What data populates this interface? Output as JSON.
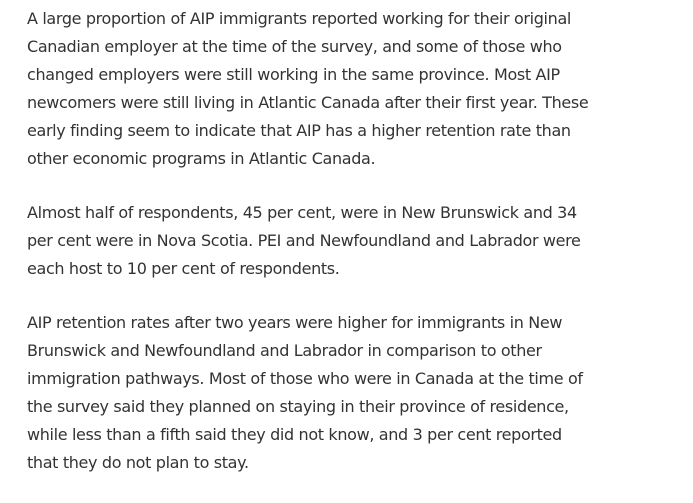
{
  "paragraphs": [
    {
      "lines": [
        "A large proportion of AIP immigrants reported working for their original",
        "Canadian employer at the time of the survey, and some of those who",
        "changed employers were still working in the same province. Most AIP",
        "newcomers were still living in Atlantic Canada after their first year. These",
        "early finding seem to indicate that AIP has a higher retention rate than",
        "other economic programs in Atlantic Canada."
      ]
    },
    {
      "lines": [
        "Almost half of respondents, 45 per cent, were in New Brunswick and 34",
        "per cent were in Nova Scotia. PEI and Newfoundland and Labrador were",
        "each host to 10 per cent of respondents."
      ]
    },
    {
      "lines": [
        "AIP retention rates after two years were higher for immigrants in New",
        "Brunswick and Newfoundland and Labrador in comparison to other",
        "immigration pathways. Most of those who were in Canada at the time of",
        "the survey said they planned on staying in their province of residence,",
        "while less than a fifth said they did not know, and 3 per cent reported",
        "that they do not plan to stay."
      ]
    }
  ]
}
